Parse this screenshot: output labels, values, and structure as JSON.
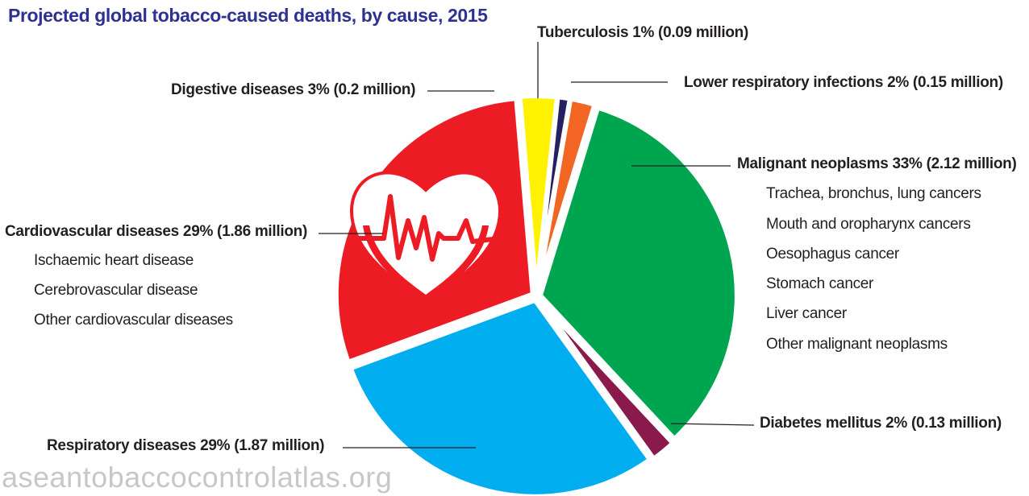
{
  "title": "Projected global tobacco-caused deaths, by cause, 2015",
  "watermark": "aseantobaccocontrolatlas.org",
  "icon": "heart-pulse-icon",
  "colors": {
    "title": "#2e3192",
    "malignant": "#00a64f",
    "diabetes": "#8b1a4c",
    "respiratory": "#00adef",
    "cardiovascular": "#ed1c24",
    "digestive": "#fff200",
    "tuberculosis": "#262262",
    "lower_respiratory": "#f26522"
  },
  "labels": {
    "tuberculosis": "Tuberculosis 1% (0.09 million)",
    "lower_respiratory": "Lower respiratory infections 2% (0.15 million)",
    "digestive": "Digestive diseases 3% (0.2 million)",
    "malignant": "Malignant neoplasms 33% (2.12 million)",
    "malignant_subs": [
      "Trachea, bronchus, lung cancers",
      "Mouth and oropharynx cancers",
      "Oesophagus cancer",
      "Stomach cancer",
      "Liver cancer",
      "Other malignant neoplasms"
    ],
    "cardiovascular": "Cardiovascular diseases 29% (1.86 million)",
    "cardiovascular_subs": [
      "Ischaemic heart disease",
      "Cerebrovascular disease",
      "Other cardiovascular diseases"
    ],
    "diabetes": "Diabetes mellitus 2% (0.13 million)",
    "respiratory": "Respiratory diseases 29% (1.87 million)"
  },
  "chart_data": {
    "type": "pie",
    "title": "Projected global tobacco-caused deaths, by cause, 2015",
    "slices": [
      {
        "name": "Malignant neoplasms",
        "percent": 33,
        "value_millions": 2.12,
        "color": "#00a64f",
        "subcategories": [
          "Trachea, bronchus, lung cancers",
          "Mouth and oropharynx cancers",
          "Oesophagus cancer",
          "Stomach cancer",
          "Liver cancer",
          "Other malignant neoplasms"
        ]
      },
      {
        "name": "Diabetes mellitus",
        "percent": 2,
        "value_millions": 0.13,
        "color": "#8b1a4c"
      },
      {
        "name": "Respiratory diseases",
        "percent": 29,
        "value_millions": 1.87,
        "color": "#00adef"
      },
      {
        "name": "Cardiovascular diseases",
        "percent": 29,
        "value_millions": 1.86,
        "color": "#ed1c24",
        "subcategories": [
          "Ischaemic heart disease",
          "Cerebrovascular disease",
          "Other cardiovascular diseases"
        ]
      },
      {
        "name": "Digestive diseases",
        "percent": 3,
        "value_millions": 0.2,
        "color": "#fff200"
      },
      {
        "name": "Tuberculosis",
        "percent": 1,
        "value_millions": 0.09,
        "color": "#262262"
      },
      {
        "name": "Lower respiratory infections",
        "percent": 2,
        "value_millions": 0.15,
        "color": "#f26522"
      }
    ]
  }
}
